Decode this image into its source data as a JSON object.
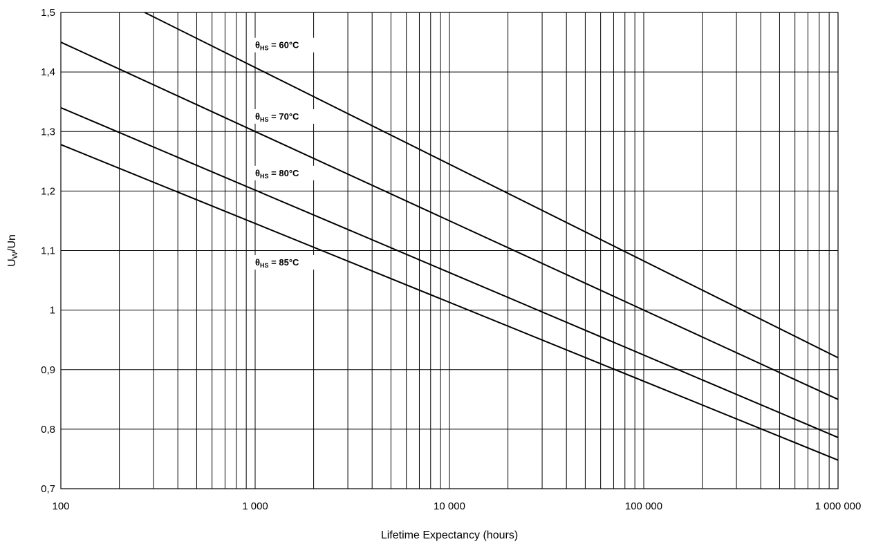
{
  "chart_data": {
    "type": "line",
    "xlabel": "Lifetime Expectancy (hours)",
    "ylabel_main": "U",
    "ylabel_sub": "W",
    "ylabel_tail": "/Un",
    "x_scale": "log",
    "xlim": [
      100,
      1000000
    ],
    "ylim": [
      0.7,
      1.5
    ],
    "grid": true,
    "x_ticks": [
      {
        "value": 100,
        "label": "100"
      },
      {
        "value": 1000,
        "label": "1 000"
      },
      {
        "value": 10000,
        "label": "10 000"
      },
      {
        "value": 100000,
        "label": "100 000"
      },
      {
        "value": 1000000,
        "label": "1 000 000"
      }
    ],
    "y_ticks": [
      {
        "value": 0.7,
        "label": "0,7"
      },
      {
        "value": 0.8,
        "label": "0,8"
      },
      {
        "value": 0.9,
        "label": "0,9"
      },
      {
        "value": 1.0,
        "label": "1"
      },
      {
        "value": 1.1,
        "label": "1,1"
      },
      {
        "value": 1.2,
        "label": "1,2"
      },
      {
        "value": 1.3,
        "label": "1,3"
      },
      {
        "value": 1.4,
        "label": "1,4"
      },
      {
        "value": 1.5,
        "label": "1,5"
      }
    ],
    "series": [
      {
        "name": "θHS = 60°C",
        "label_main": "θ",
        "label_sub": "HS",
        "label_tail": " = 60°C",
        "label_x": 1000,
        "label_y": 1.44,
        "x": [
          270,
          1000000
        ],
        "y": [
          1.5,
          0.92
        ]
      },
      {
        "name": "θHS = 70°C",
        "label_main": "θ",
        "label_sub": "HS",
        "label_tail": " = 70°C",
        "label_x": 1000,
        "label_y": 1.32,
        "x": [
          100,
          1000000
        ],
        "y": [
          1.45,
          0.85
        ]
      },
      {
        "name": "θHS = 80°C",
        "label_main": "θ",
        "label_sub": "HS",
        "label_tail": " = 80°C",
        "label_x": 1000,
        "label_y": 1.225,
        "x": [
          100,
          1000000
        ],
        "y": [
          1.34,
          0.786
        ]
      },
      {
        "name": "θHS = 85°C",
        "label_main": "θ",
        "label_sub": "HS",
        "label_tail": " = 85°C",
        "label_x": 1000,
        "label_y": 1.075,
        "x": [
          100,
          1000000
        ],
        "y": [
          1.278,
          0.748
        ]
      }
    ]
  }
}
